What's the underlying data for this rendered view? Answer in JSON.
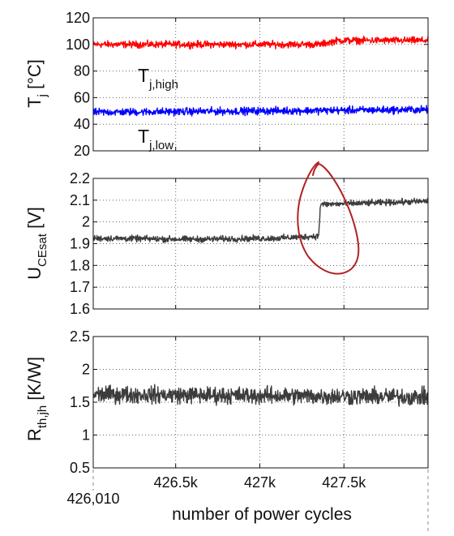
{
  "chart_data": [
    {
      "type": "line",
      "ylabel": {
        "main": "T",
        "sub": "j",
        "unit": " [°C]"
      },
      "ylim": [
        20,
        120
      ],
      "yticks": [
        "20",
        "40",
        "60",
        "80",
        "100",
        "120"
      ],
      "grid": true,
      "x_range": [
        426010,
        428000
      ],
      "series": [
        {
          "name": "T_j,high",
          "label_main": "T",
          "label_sub": "j,high",
          "color": "#ff0000",
          "points": [
            [
              426010,
              100
            ],
            [
              427300,
              100
            ],
            [
              427360,
              100
            ],
            [
              427460,
              103
            ],
            [
              428000,
              103
            ]
          ],
          "noise": 2.2
        },
        {
          "name": "T_j,low",
          "label_main": "T",
          "label_sub": "j,low",
          "color": "#0000ff",
          "points": [
            [
              426010,
              49
            ],
            [
              428000,
              51
            ]
          ],
          "noise": 2.4
        }
      ]
    },
    {
      "type": "line",
      "ylabel": {
        "main": "U",
        "sub": "CEsat",
        "unit": " [V]"
      },
      "ylim": [
        1.6,
        2.2
      ],
      "yticks": [
        "1.6",
        "1.7",
        "1.8",
        "1.9",
        "2",
        "2.1",
        "2.2"
      ],
      "grid": true,
      "x_range": [
        426010,
        428000
      ],
      "series": [
        {
          "color": "#3c3c3c",
          "points": [
            [
              426010,
              1.925
            ],
            [
              426600,
              1.92
            ],
            [
              427100,
              1.925
            ],
            [
              427350,
              1.935
            ],
            [
              427360,
              2.08
            ],
            [
              428000,
              2.095
            ]
          ],
          "noise": 0.012
        }
      ]
    },
    {
      "type": "line",
      "ylabel": {
        "main": "R",
        "sub": "th,jh",
        "unit": " [K/W]"
      },
      "ylim": [
        0.5,
        2.5
      ],
      "yticks": [
        "0.5",
        "1",
        "1.5",
        "2",
        "2.5"
      ],
      "grid": true,
      "x_range": [
        426010,
        428000
      ],
      "series": [
        {
          "color": "#3c3c3c",
          "points": [
            [
              426010,
              1.62
            ],
            [
              428000,
              1.58
            ]
          ],
          "noise": 0.11
        }
      ]
    }
  ],
  "x_axis": {
    "ticks": [
      {
        "value": 426500,
        "label": "426.5k"
      },
      {
        "value": 427000,
        "label": "427k"
      },
      {
        "value": 427500,
        "label": "427.5k"
      }
    ],
    "start_label": "426,010",
    "xlabel": "number of power cycles"
  },
  "annotation": {
    "shape": "hand-drawn-circle",
    "color": "#b22222"
  }
}
